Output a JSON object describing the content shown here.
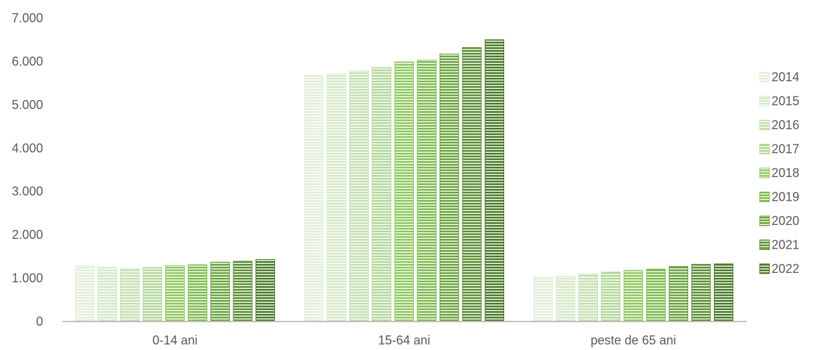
{
  "chart_data": {
    "type": "bar",
    "categories": [
      "0-14 ani",
      "15-64 ani",
      "peste de 65 ani"
    ],
    "series": [
      {
        "name": "2014",
        "color": "#e2efda",
        "values": [
          1290,
          5680,
          1020
        ]
      },
      {
        "name": "2015",
        "color": "#d4e8c6",
        "values": [
          1250,
          5710,
          1040
        ]
      },
      {
        "name": "2016",
        "color": "#c4e0b0",
        "values": [
          1220,
          5780,
          1090
        ]
      },
      {
        "name": "2017",
        "color": "#b3d79a",
        "values": [
          1250,
          5860,
          1140
        ]
      },
      {
        "name": "2018",
        "color": "#8fc85e",
        "values": [
          1290,
          5990,
          1180
        ]
      },
      {
        "name": "2019",
        "color": "#7dbb4e",
        "values": [
          1310,
          6030,
          1210
        ]
      },
      {
        "name": "2020",
        "color": "#6aa43e",
        "values": [
          1370,
          6170,
          1270
        ]
      },
      {
        "name": "2021",
        "color": "#5a8f33",
        "values": [
          1390,
          6320,
          1320
        ]
      },
      {
        "name": "2022",
        "color": "#4a7a29",
        "values": [
          1430,
          6500,
          1330
        ]
      }
    ],
    "ylim": [
      0,
      7000
    ],
    "yticks": [
      "0",
      "1.000",
      "2.000",
      "3.000",
      "4.000",
      "5.000",
      "6.000",
      "7.000"
    ],
    "grid": false,
    "legend": "right",
    "bar_pattern": "horizontal-stripes",
    "axis_color": "#bfbfbf"
  }
}
